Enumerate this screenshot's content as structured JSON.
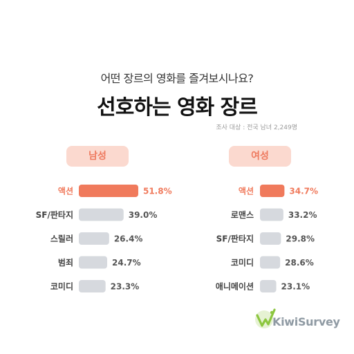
{
  "header": {
    "subtitle": "어떤 장르의 영화를 즐겨보시나요?",
    "title": "선호하는 영화 장르",
    "survey_note": "조사 대상 : 전국 남녀 2,249명"
  },
  "brand": {
    "name": "KiwiSurvey",
    "logo_color": "#8cc63f"
  },
  "colors": {
    "highlight": "#f07a5c",
    "bar": "#d6d9de",
    "pill_bg": "#fbd9cf",
    "pill_text": "#ee7a5f"
  },
  "chart_data": [
    {
      "type": "bar",
      "orientation": "horizontal",
      "title": "남성",
      "categories": [
        "액션",
        "SF/판타지",
        "스릴러",
        "범죄",
        "코미디"
      ],
      "values": [
        51.8,
        39.0,
        26.4,
        24.7,
        23.3
      ],
      "value_labels": [
        "51.8%",
        "39.0%",
        "26.4%",
        "24.7%",
        "23.3%"
      ],
      "unit": "%",
      "highlight_index": 0
    },
    {
      "type": "bar",
      "orientation": "horizontal",
      "title": "여성",
      "categories": [
        "액션",
        "로맨스",
        "SF/판타지",
        "코미디",
        "애니메이션"
      ],
      "values": [
        34.7,
        33.2,
        29.8,
        28.6,
        23.1
      ],
      "value_labels": [
        "34.7%",
        "33.2%",
        "29.8%",
        "28.6%",
        "23.1%"
      ],
      "unit": "%",
      "highlight_index": 0
    }
  ]
}
